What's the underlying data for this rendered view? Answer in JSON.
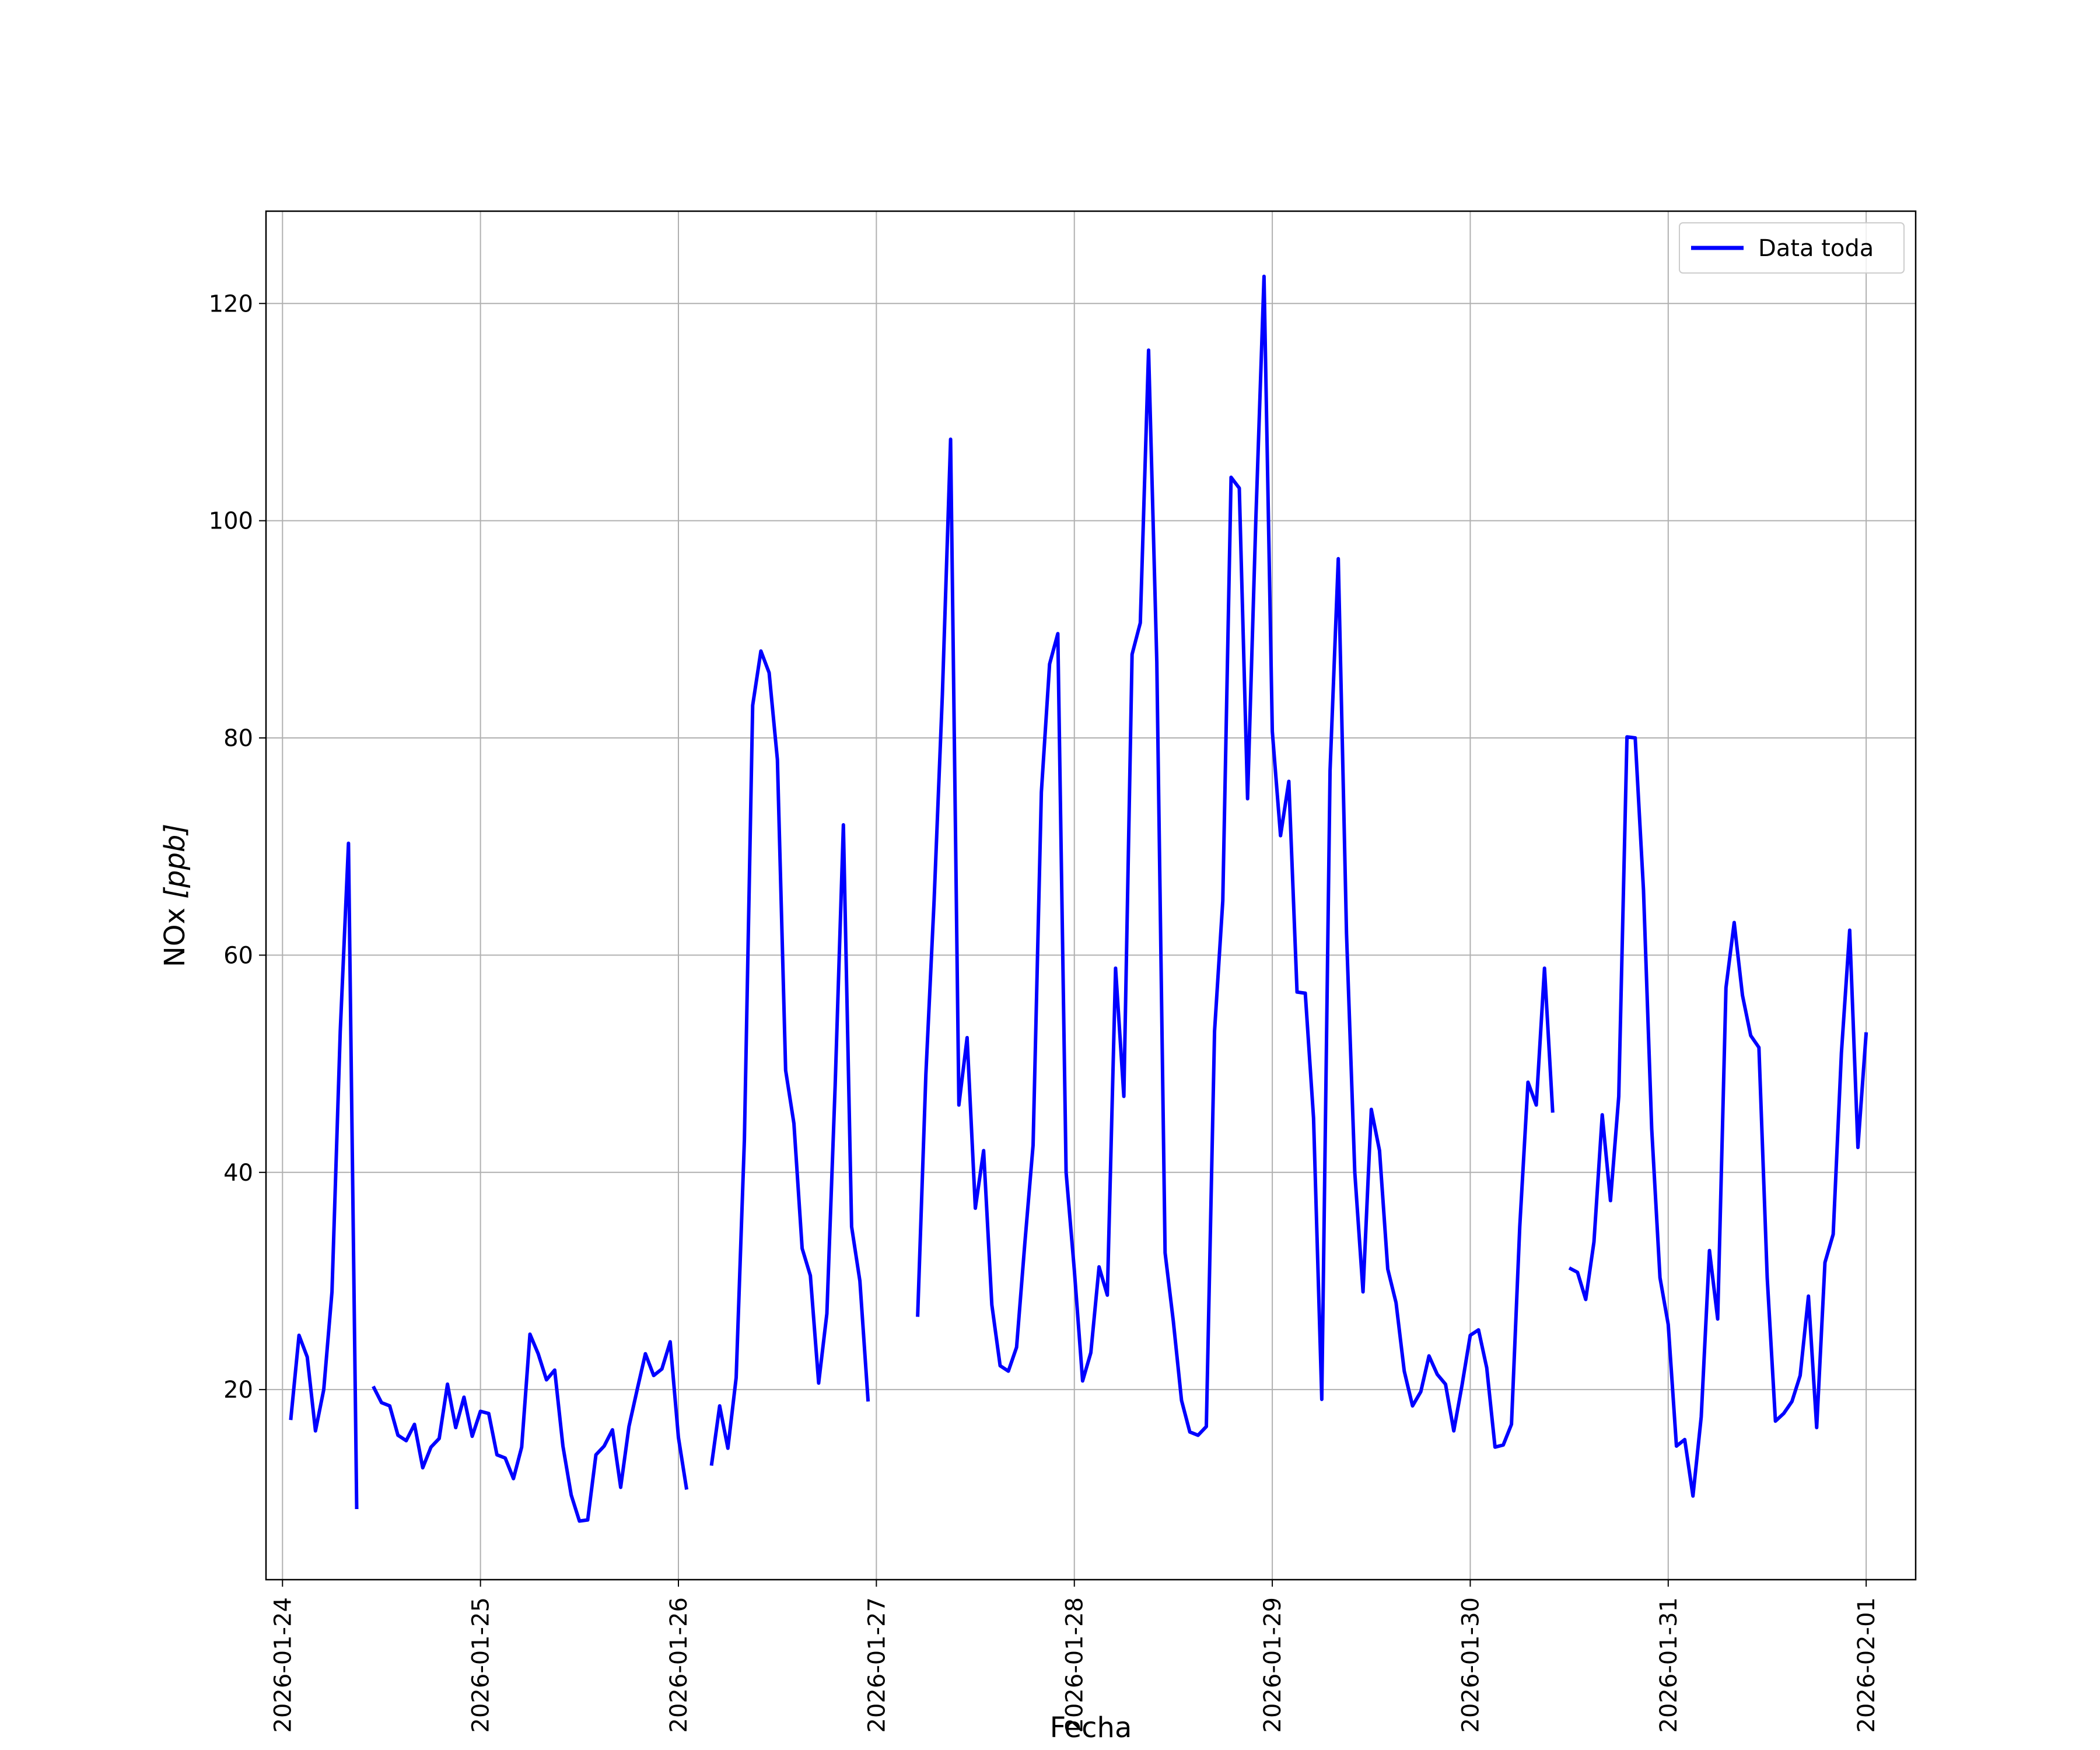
{
  "chart_data": {
    "type": "line",
    "title": "",
    "xlabel": "Fecha",
    "ylabel_main": "NOx ",
    "ylabel_unit": "[ppb]",
    "grid": true,
    "legend_position": "top-right",
    "xlim": [
      "2026-01-23T22:00",
      "2026-02-01T06:00"
    ],
    "ylim": [
      2.5,
      128.5
    ],
    "x_ticks": [
      "2026-01-24",
      "2026-01-25",
      "2026-01-26",
      "2026-01-27",
      "2026-01-28",
      "2026-01-29",
      "2026-01-30",
      "2026-01-31",
      "2026-02-01"
    ],
    "y_ticks": [
      20,
      40,
      60,
      80,
      100,
      120
    ],
    "series": [
      {
        "name": "Data toda",
        "color": "#0000ff",
        "segments": [
          [
            [
              "2026-01-24T01:00",
              17.2
            ],
            [
              "2026-01-24T02:00",
              25.0
            ],
            [
              "2026-01-24T03:00",
              23.0
            ],
            [
              "2026-01-24T04:00",
              16.2
            ],
            [
              "2026-01-24T05:00",
              20.0
            ],
            [
              "2026-01-24T06:00",
              29.0
            ],
            [
              "2026-01-24T07:00",
              53.0
            ],
            [
              "2026-01-24T08:00",
              70.3
            ],
            [
              "2026-01-24T09:00",
              9.0
            ]
          ],
          [
            [
              "2026-01-24T11:00",
              20.3
            ],
            [
              "2026-01-24T12:00",
              18.8
            ],
            [
              "2026-01-24T13:00",
              18.5
            ],
            [
              "2026-01-24T14:00",
              15.8
            ],
            [
              "2026-01-24T15:00",
              15.3
            ],
            [
              "2026-01-24T16:00",
              16.8
            ],
            [
              "2026-01-24T17:00",
              12.8
            ],
            [
              "2026-01-24T18:00",
              14.7
            ],
            [
              "2026-01-24T19:00",
              15.5
            ],
            [
              "2026-01-24T20:00",
              20.5
            ],
            [
              "2026-01-24T21:00",
              16.5
            ],
            [
              "2026-01-24T22:00",
              19.3
            ],
            [
              "2026-01-24T23:00",
              15.7
            ],
            [
              "2026-01-25T00:00",
              18.0
            ],
            [
              "2026-01-25T01:00",
              17.8
            ],
            [
              "2026-01-25T02:00",
              14.0
            ],
            [
              "2026-01-25T03:00",
              13.7
            ],
            [
              "2026-01-25T04:00",
              11.8
            ],
            [
              "2026-01-25T05:00",
              14.7
            ],
            [
              "2026-01-25T06:00",
              25.1
            ],
            [
              "2026-01-25T07:00",
              23.3
            ],
            [
              "2026-01-25T08:00",
              20.9
            ],
            [
              "2026-01-25T09:00",
              21.8
            ],
            [
              "2026-01-25T10:00",
              14.8
            ],
            [
              "2026-01-25T11:00",
              10.3
            ],
            [
              "2026-01-25T12:00",
              7.9
            ],
            [
              "2026-01-25T13:00",
              8.0
            ],
            [
              "2026-01-25T14:00",
              14.0
            ],
            [
              "2026-01-25T15:00",
              14.8
            ],
            [
              "2026-01-25T16:00",
              16.3
            ],
            [
              "2026-01-25T17:00",
              11.0
            ],
            [
              "2026-01-25T18:00",
              16.6
            ],
            [
              "2026-01-25T19:00",
              20.0
            ],
            [
              "2026-01-25T20:00",
              23.3
            ],
            [
              "2026-01-25T21:00",
              21.3
            ],
            [
              "2026-01-25T22:00",
              21.9
            ],
            [
              "2026-01-25T23:00",
              24.4
            ],
            [
              "2026-01-26T00:00",
              15.6
            ],
            [
              "2026-01-26T01:00",
              10.8
            ]
          ],
          [
            [
              "2026-01-26T04:00",
              13.0
            ],
            [
              "2026-01-26T05:00",
              18.5
            ],
            [
              "2026-01-26T06:00",
              14.6
            ],
            [
              "2026-01-26T07:00",
              21.1
            ],
            [
              "2026-01-26T08:00",
              43.0
            ],
            [
              "2026-01-26T09:00",
              83.0
            ],
            [
              "2026-01-26T10:00",
              88.0
            ],
            [
              "2026-01-26T11:00",
              86.0
            ],
            [
              "2026-01-26T12:00",
              78.0
            ],
            [
              "2026-01-26T13:00",
              49.4
            ],
            [
              "2026-01-26T14:00",
              44.5
            ],
            [
              "2026-01-26T15:00",
              33.0
            ],
            [
              "2026-01-26T16:00",
              30.5
            ],
            [
              "2026-01-26T17:00",
              20.6
            ],
            [
              "2026-01-26T18:00",
              27.0
            ],
            [
              "2026-01-26T19:00",
              48.0
            ],
            [
              "2026-01-26T20:00",
              72.0
            ],
            [
              "2026-01-26T21:00",
              35.0
            ],
            [
              "2026-01-26T22:00",
              30.0
            ],
            [
              "2026-01-26T23:00",
              18.9
            ]
          ],
          [
            [
              "2026-01-27T05:00",
              26.7
            ],
            [
              "2026-01-27T06:00",
              49.0
            ],
            [
              "2026-01-27T07:00",
              65.0
            ],
            [
              "2026-01-27T08:00",
              84.0
            ],
            [
              "2026-01-27T09:00",
              107.5
            ],
            [
              "2026-01-27T10:00",
              46.2
            ],
            [
              "2026-01-27T11:00",
              52.4
            ],
            [
              "2026-01-27T12:00",
              36.7
            ],
            [
              "2026-01-27T13:00",
              42.0
            ],
            [
              "2026-01-27T14:00",
              27.8
            ],
            [
              "2026-01-27T15:00",
              22.2
            ],
            [
              "2026-01-27T16:00",
              21.7
            ],
            [
              "2026-01-27T17:00",
              23.9
            ],
            [
              "2026-01-27T18:00",
              33.5
            ],
            [
              "2026-01-27T19:00",
              42.5
            ],
            [
              "2026-01-27T20:00",
              75.0
            ],
            [
              "2026-01-27T21:00",
              86.8
            ],
            [
              "2026-01-27T22:00",
              89.6
            ],
            [
              "2026-01-27T23:00",
              40.0
            ],
            [
              "2026-01-28T00:00",
              31.0
            ],
            [
              "2026-01-28T01:00",
              20.8
            ],
            [
              "2026-01-28T02:00",
              23.4
            ],
            [
              "2026-01-28T03:00",
              31.3
            ],
            [
              "2026-01-28T04:00",
              28.7
            ],
            [
              "2026-01-28T05:00",
              58.8
            ],
            [
              "2026-01-28T06:00",
              47.0
            ],
            [
              "2026-01-28T07:00",
              87.7
            ],
            [
              "2026-01-28T08:00",
              90.6
            ],
            [
              "2026-01-28T09:00",
              115.7
            ],
            [
              "2026-01-28T10:00",
              87.0
            ],
            [
              "2026-01-28T11:00",
              32.6
            ],
            [
              "2026-01-28T12:00",
              26.3
            ],
            [
              "2026-01-28T13:00",
              19.0
            ],
            [
              "2026-01-28T14:00",
              16.1
            ],
            [
              "2026-01-28T15:00",
              15.8
            ],
            [
              "2026-01-28T16:00",
              16.6
            ],
            [
              "2026-01-28T17:00",
              53.0
            ],
            [
              "2026-01-28T18:00",
              65.0
            ],
            [
              "2026-01-28T19:00",
              104.0
            ],
            [
              "2026-01-28T20:00",
              103.0
            ],
            [
              "2026-01-28T21:00",
              74.4
            ],
            [
              "2026-01-28T22:00",
              100.0
            ],
            [
              "2026-01-28T23:00",
              122.5
            ],
            [
              "2026-01-29T00:00",
              80.6
            ],
            [
              "2026-01-29T01:00",
              71.0
            ],
            [
              "2026-01-29T02:00",
              76.0
            ],
            [
              "2026-01-29T03:00",
              56.6
            ],
            [
              "2026-01-29T04:00",
              56.5
            ],
            [
              "2026-01-29T05:00",
              45.0
            ],
            [
              "2026-01-29T06:00",
              19.1
            ],
            [
              "2026-01-29T07:00",
              77.0
            ],
            [
              "2026-01-29T08:00",
              96.5
            ],
            [
              "2026-01-29T09:00",
              62.0
            ],
            [
              "2026-01-29T10:00",
              40.0
            ],
            [
              "2026-01-29T11:00",
              29.0
            ],
            [
              "2026-01-29T12:00",
              45.8
            ],
            [
              "2026-01-29T13:00",
              42.0
            ],
            [
              "2026-01-29T14:00",
              31.1
            ],
            [
              "2026-01-29T15:00",
              28.0
            ],
            [
              "2026-01-29T16:00",
              21.7
            ],
            [
              "2026-01-29T17:00",
              18.5
            ],
            [
              "2026-01-29T18:00",
              19.8
            ],
            [
              "2026-01-29T19:00",
              23.1
            ],
            [
              "2026-01-29T20:00",
              21.4
            ],
            [
              "2026-01-29T21:00",
              20.5
            ],
            [
              "2026-01-29T22:00",
              16.2
            ],
            [
              "2026-01-29T23:00",
              20.4
            ],
            [
              "2026-01-30T00:00",
              25.0
            ],
            [
              "2026-01-30T01:00",
              25.5
            ],
            [
              "2026-01-30T02:00",
              22.0
            ],
            [
              "2026-01-30T03:00",
              14.7
            ],
            [
              "2026-01-30T04:00",
              14.9
            ],
            [
              "2026-01-30T05:00",
              16.8
            ],
            [
              "2026-01-30T06:00",
              35.0
            ],
            [
              "2026-01-30T07:00",
              48.3
            ],
            [
              "2026-01-30T08:00",
              46.2
            ],
            [
              "2026-01-30T09:00",
              58.8
            ],
            [
              "2026-01-30T10:00",
              45.5
            ]
          ],
          [
            [
              "2026-01-30T12:00",
              31.2
            ],
            [
              "2026-01-30T13:00",
              30.8
            ],
            [
              "2026-01-30T14:00",
              28.3
            ],
            [
              "2026-01-30T15:00",
              33.6
            ],
            [
              "2026-01-30T16:00",
              45.3
            ],
            [
              "2026-01-30T17:00",
              37.4
            ],
            [
              "2026-01-30T18:00",
              47.0
            ],
            [
              "2026-01-30T19:00",
              80.1
            ],
            [
              "2026-01-30T20:00",
              80.0
            ],
            [
              "2026-01-30T21:00",
              66.0
            ],
            [
              "2026-01-30T22:00",
              44.0
            ],
            [
              "2026-01-30T23:00",
              30.3
            ],
            [
              "2026-01-31T00:00",
              26.0
            ],
            [
              "2026-01-31T01:00",
              14.8
            ],
            [
              "2026-01-31T02:00",
              15.4
            ],
            [
              "2026-01-31T03:00",
              10.2
            ],
            [
              "2026-01-31T04:00",
              17.5
            ],
            [
              "2026-01-31T05:00",
              32.8
            ],
            [
              "2026-01-31T06:00",
              26.5
            ],
            [
              "2026-01-31T07:00",
              57.0
            ],
            [
              "2026-01-31T08:00",
              63.0
            ],
            [
              "2026-01-31T09:00",
              56.3
            ],
            [
              "2026-01-31T10:00",
              52.6
            ],
            [
              "2026-01-31T11:00",
              51.5
            ],
            [
              "2026-01-31T12:00",
              30.3
            ],
            [
              "2026-01-31T13:00",
              17.1
            ],
            [
              "2026-01-31T14:00",
              17.8
            ],
            [
              "2026-01-31T15:00",
              18.9
            ],
            [
              "2026-01-31T16:00",
              21.3
            ],
            [
              "2026-01-31T17:00",
              28.6
            ],
            [
              "2026-01-31T18:00",
              16.5
            ],
            [
              "2026-01-31T19:00",
              31.7
            ],
            [
              "2026-01-31T20:00",
              34.3
            ],
            [
              "2026-01-31T21:00",
              51.0
            ],
            [
              "2026-01-31T22:00",
              62.3
            ],
            [
              "2026-01-31T23:00",
              42.3
            ],
            [
              "2026-02-01T00:00",
              52.9
            ]
          ]
        ]
      }
    ]
  }
}
